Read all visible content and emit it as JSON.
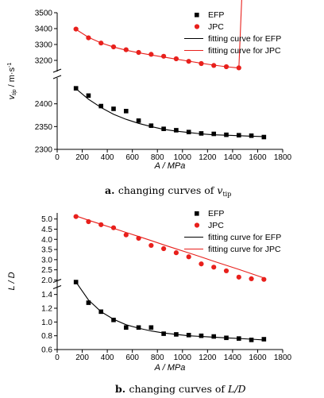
{
  "colors": {
    "efp": "#000000",
    "jpc": "#e8201c",
    "axis": "#000000"
  },
  "chart_data": [
    {
      "type": "scatter",
      "caption": {
        "letter": "a.",
        "text": "changing curves of ",
        "var": "v",
        "sub": "tip"
      },
      "xlabel": "A / MPa",
      "ylabel_main": "v",
      "ylabel_sub": "tip",
      "ylabel_unit": " / m·s",
      "ylabel_sup": "-1",
      "xlim": [
        0,
        1800
      ],
      "xticks": [
        "0",
        "200",
        "400",
        "600",
        "800",
        "1000",
        "1200",
        "1400",
        "1600",
        "1800"
      ],
      "broken_axis": true,
      "upper": {
        "ylim": [
          3150,
          3500
        ],
        "yticks": [
          "3500",
          "3400",
          "3300",
          "3200"
        ]
      },
      "lower": {
        "ylim": [
          2300,
          2450
        ],
        "yticks": [
          "2400",
          "2350",
          "2300"
        ]
      },
      "legend": {
        "position": "top-right",
        "efp_marker": "EFP",
        "jpc_marker": "JPC",
        "efp_fit": "fitting curve for EFP",
        "jpc_fit": "fitting curve for JPC"
      },
      "series": [
        {
          "name": "EFP",
          "marker": "square",
          "color": "#000000",
          "x": [
            150,
            250,
            350,
            450,
            550,
            650,
            750,
            850,
            950,
            1050,
            1150,
            1250,
            1350,
            1450,
            1550,
            1650
          ],
          "y": [
            2434,
            2418,
            2395,
            2389,
            2384,
            2363,
            2352,
            2345,
            2342,
            2338,
            2335,
            2334,
            2332,
            2331,
            2330,
            2327
          ]
        },
        {
          "name": "JPC",
          "marker": "circle",
          "color": "#e8201c",
          "x": [
            150,
            250,
            350,
            450,
            550,
            650,
            750,
            850,
            950,
            1050,
            1150,
            1250,
            1350,
            1450,
            1550,
            1650
          ],
          "y": [
            3397,
            3342,
            3309,
            3285,
            3267,
            3250,
            3238,
            3226,
            3210,
            3194,
            3180,
            3168,
            3160,
            3153,
            3144,
            3141
          ]
        },
        {
          "name": "fitting curve for EFP",
          "type": "line",
          "color": "#000000",
          "x": [
            150,
            250,
            350,
            450,
            550,
            650,
            750,
            850,
            950,
            1050,
            1150,
            1250,
            1350,
            1450,
            1550,
            1650
          ],
          "y": [
            2433,
            2410,
            2392,
            2377,
            2366,
            2357,
            2350,
            2344,
            2340,
            2337,
            2334,
            2332,
            2331,
            2330,
            2329,
            2328
          ]
        },
        {
          "name": "fitting curve for JPC",
          "type": "line",
          "color": "#e8201c",
          "x": [
            150,
            250,
            350,
            450,
            550,
            650,
            750,
            850,
            950,
            1050,
            1150,
            1250,
            1350,
            1450,
            1550,
            1650
          ],
          "y": [
            3395,
            3345,
            3310,
            3284,
            3264,
            3248,
            3234,
            3221,
            3208,
            3195,
            3182,
            3170,
            3160,
            3152,
            3145,
            3140
          ]
        }
      ]
    },
    {
      "type": "scatter",
      "caption": {
        "letter": "b.",
        "text": "changing curves of ",
        "var": "L/D"
      },
      "xlabel": "A / MPa",
      "ylabel": "L / D",
      "xlim": [
        0,
        1800
      ],
      "xticks": [
        "0",
        "200",
        "400",
        "600",
        "800",
        "1000",
        "1200",
        "1400",
        "1600",
        "1800"
      ],
      "broken_axis": true,
      "upper": {
        "ylim": [
          1.9,
          5.3
        ],
        "yticks": [
          "5.0",
          "4.5",
          "4.0",
          "3.5",
          "3.0",
          "2.5",
          "2.0"
        ]
      },
      "lower": {
        "ylim": [
          0.6,
          1.5
        ],
        "yticks": [
          "1.4",
          "1.2",
          "1.0",
          "0.8",
          "0.6"
        ]
      },
      "legend": {
        "position": "top-right",
        "efp_marker": "EFP",
        "jpc_marker": "JPC",
        "efp_fit": "fitting curve for EFP",
        "jpc_fit": "fitting curve for JPC"
      },
      "series": [
        {
          "name": "EFP",
          "marker": "square",
          "color": "#000000",
          "x": [
            150,
            250,
            350,
            450,
            550,
            650,
            750,
            850,
            950,
            1050,
            1150,
            1250,
            1350,
            1450,
            1550,
            1650
          ],
          "y": [
            1.58,
            1.28,
            1.15,
            1.03,
            0.92,
            0.92,
            0.92,
            0.83,
            0.82,
            0.81,
            0.8,
            0.79,
            0.77,
            0.76,
            0.74,
            0.75
          ]
        },
        {
          "name": "JPC",
          "marker": "circle",
          "color": "#e8201c",
          "x": [
            150,
            250,
            350,
            450,
            550,
            650,
            750,
            850,
            950,
            1050,
            1150,
            1250,
            1350,
            1450,
            1550,
            1650
          ],
          "y": [
            5.12,
            4.87,
            4.72,
            4.57,
            4.22,
            4.05,
            3.7,
            3.54,
            3.34,
            3.14,
            2.79,
            2.63,
            2.45,
            2.14,
            2.06,
            2.03
          ]
        },
        {
          "name": "fitting curve for EFP",
          "type": "line",
          "color": "#000000",
          "x": [
            150,
            250,
            350,
            450,
            550,
            650,
            750,
            850,
            950,
            1050,
            1150,
            1250,
            1350,
            1450,
            1550,
            1650
          ],
          "y": [
            1.58,
            1.32,
            1.15,
            1.04,
            0.96,
            0.91,
            0.87,
            0.84,
            0.82,
            0.8,
            0.79,
            0.78,
            0.77,
            0.76,
            0.75,
            0.74
          ]
        },
        {
          "name": "fitting curve for JPC",
          "type": "line",
          "color": "#e8201c",
          "x": [
            150,
            250,
            350,
            450,
            550,
            650,
            750,
            850,
            950,
            1050,
            1150,
            1250,
            1350,
            1450,
            1550,
            1650
          ],
          "y": [
            5.15,
            4.94,
            4.74,
            4.54,
            4.34,
            4.14,
            3.94,
            3.73,
            3.53,
            3.33,
            3.13,
            2.92,
            2.72,
            2.52,
            2.31,
            2.1
          ]
        }
      ]
    }
  ]
}
